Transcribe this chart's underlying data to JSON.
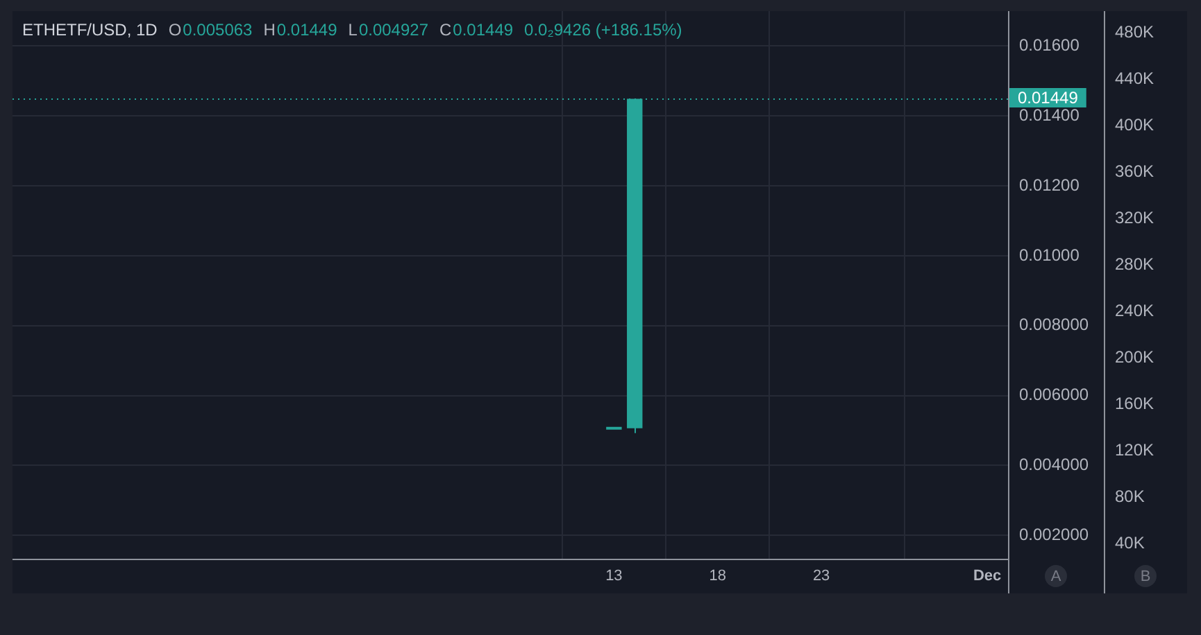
{
  "chart_data": {
    "type": "candlestick",
    "title": "ETHETF/USD, 1D",
    "annotations": [
      "O0.005063",
      "H0.01449",
      "L0.004927",
      "C0.01449",
      "0.0₂9426 (+186.15%)",
      "A",
      "B"
    ],
    "x": [
      "--11-13",
      "--11-14"
    ],
    "ohlc": [
      [
        0.005064,
        0.005064,
        0.005064,
        0.005064
      ],
      [
        0.005063,
        0.01449,
        0.004927,
        0.01449
      ]
    ],
    "color": "#26a69a",
    "xlim": [
      "--10-15",
      "--12-02"
    ],
    "xticks": [
      {
        "value": "--11-13",
        "label": "13"
      },
      {
        "value": "--11-18",
        "label": "18"
      },
      {
        "value": "--11-23",
        "label": "23"
      },
      {
        "value": "--12-01",
        "label": "Dec"
      }
    ],
    "ylim": [
      0.00133,
      0.017
    ],
    "yticks": [
      {
        "value": 0.002,
        "label": "0.002000"
      },
      {
        "value": 0.004,
        "label": "0.004000"
      },
      {
        "value": 0.006,
        "label": "0.006000"
      },
      {
        "value": 0.008,
        "label": "0.008000"
      },
      {
        "value": 0.01,
        "label": "0.01000"
      },
      {
        "value": 0.012,
        "label": "0.01200"
      },
      {
        "value": 0.014,
        "label": "0.01400"
      },
      {
        "value": 0.016,
        "label": "0.01600"
      }
    ],
    "y2lim": [
      27000,
      499000
    ],
    "y2ticks": [
      {
        "value": 40000,
        "label": "40K"
      },
      {
        "value": 80000,
        "label": "80K"
      },
      {
        "value": 120000,
        "label": "120K"
      },
      {
        "value": 160000,
        "label": "160K"
      },
      {
        "value": 200000,
        "label": "200K"
      },
      {
        "value": 240000,
        "label": "240K"
      },
      {
        "value": 280000,
        "label": "280K"
      },
      {
        "value": 320000,
        "label": "320K"
      },
      {
        "value": 360000,
        "label": "360K"
      },
      {
        "value": 400000,
        "label": "400K"
      },
      {
        "value": 440000,
        "label": "440K"
      },
      {
        "value": 480000,
        "label": "480K"
      }
    ],
    "ref_lines": [
      {
        "axis": "y",
        "value": 0.01449,
        "label": "0.01449",
        "color": "#26a69a",
        "line_style": "dotted"
      }
    ],
    "grid": true
  }
}
